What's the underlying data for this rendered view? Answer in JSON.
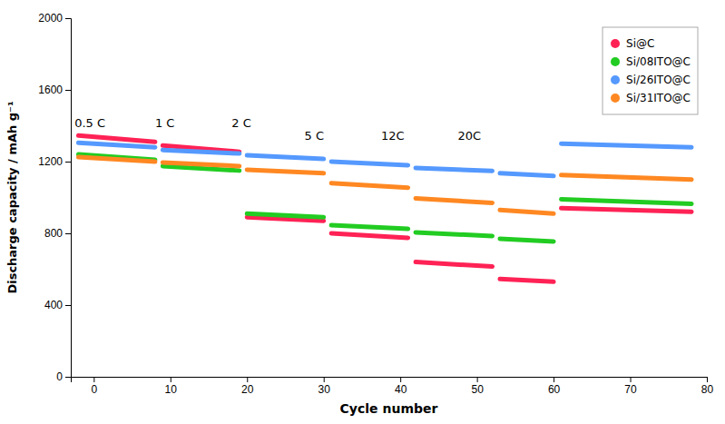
{
  "chart_data": {
    "type": "line",
    "xlabel": "Cycle number",
    "ylabel": "Discharge capacity / mAh g⁻¹",
    "xlim": [
      -3,
      80
    ],
    "ylim": [
      0,
      2000
    ],
    "xticks": [
      0,
      10,
      20,
      30,
      40,
      50,
      60,
      70,
      80
    ],
    "yticks": [
      0,
      400,
      800,
      1200,
      1600,
      2000
    ],
    "grid": false,
    "legend": "upper right",
    "x": [
      -2,
      8,
      null,
      9,
      19,
      null,
      20,
      30,
      null,
      31,
      41,
      null,
      42,
      52,
      null,
      53,
      60,
      null,
      61,
      78
    ],
    "series": [
      {
        "name": "Si@C",
        "color": "#FF2255",
        "values": [
          1345,
          1310,
          null,
          1290,
          1255,
          null,
          890,
          870,
          null,
          800,
          775,
          null,
          640,
          615,
          null,
          545,
          530,
          null,
          940,
          920
        ]
      },
      {
        "name": "Si/08ITO@C",
        "color": "#22CC22",
        "values": [
          1240,
          1210,
          null,
          1175,
          1150,
          null,
          910,
          890,
          null,
          845,
          825,
          null,
          805,
          785,
          null,
          770,
          755,
          null,
          990,
          965
        ]
      },
      {
        "name": "Si/26ITO@C",
        "color": "#5599FF",
        "values": [
          1305,
          1280,
          null,
          1265,
          1245,
          null,
          1235,
          1215,
          null,
          1200,
          1180,
          null,
          1165,
          1148,
          null,
          1135,
          1120,
          null,
          1300,
          1280
        ]
      },
      {
        "name": "Si/31ITO@C",
        "color": "#FF8822",
        "values": [
          1225,
          1200,
          null,
          1195,
          1175,
          null,
          1155,
          1135,
          null,
          1080,
          1055,
          null,
          995,
          970,
          null,
          930,
          910,
          null,
          1125,
          1100
        ]
      }
    ],
    "annotations": [
      {
        "text": "0.5 C",
        "x": -2.5,
        "y": 1390
      },
      {
        "text": "1 C",
        "x": 8.0,
        "y": 1390
      },
      {
        "text": "2 C",
        "x": 18.0,
        "y": 1390
      },
      {
        "text": "5 C",
        "x": 27.5,
        "y": 1320
      },
      {
        "text": "12C",
        "x": 37.5,
        "y": 1320
      },
      {
        "text": "20C",
        "x": 47.5,
        "y": 1320
      }
    ]
  }
}
